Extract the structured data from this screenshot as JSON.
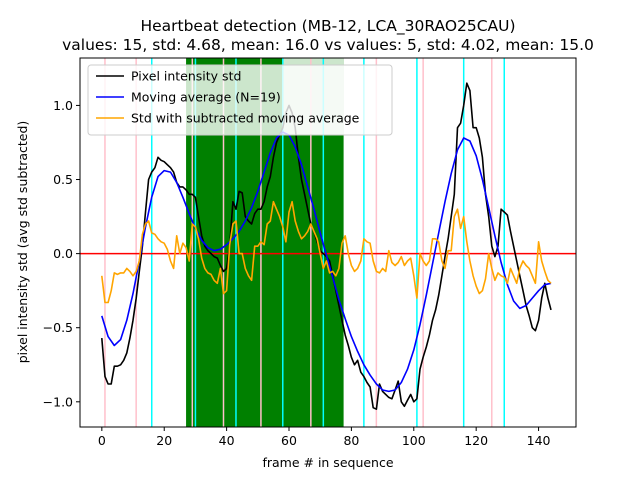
{
  "chart_data": {
    "type": "line",
    "title_line1": "Heartbeat detection (MB-12, LCA_30RAO25CAU)",
    "title_line2": "values: 15, std: 4.68, mean: 16.0 vs values: 5, std: 4.02, mean: 15.0",
    "xlabel": "frame # in sequence",
    "ylabel": "pixel intensity std (avg std subtracted)",
    "xlim": [
      -7,
      152
    ],
    "ylim": [
      -1.17,
      1.32
    ],
    "xticks": [
      0,
      20,
      40,
      60,
      80,
      100,
      120,
      140
    ],
    "yticks": [
      -1.0,
      -0.5,
      0.0,
      0.5,
      1.0
    ],
    "xtick_labels": [
      "0",
      "20",
      "40",
      "60",
      "80",
      "100",
      "120",
      "140"
    ],
    "ytick_labels": [
      "−1.0",
      "−0.5",
      "0.0",
      "0.5",
      "1.0"
    ],
    "grid": false,
    "legend_position": "top-left",
    "zero_line": {
      "y": 0,
      "color": "#ff0000"
    },
    "green_region": {
      "x0": 27,
      "x1": 77.5,
      "color": "#008000"
    },
    "green_light_region": {
      "x0": 58,
      "x1": 77.5,
      "color": "#cce6cc"
    },
    "pink_vlines": {
      "color": "#ffc0cb",
      "x": [
        1,
        11,
        29,
        39,
        51,
        67,
        88,
        103,
        125
      ]
    },
    "cyan_vlines": {
      "color": "#00ffff",
      "x": [
        16,
        30,
        43,
        58,
        71,
        84,
        101,
        116,
        129
      ]
    },
    "series": [
      {
        "name": "Pixel intensity std",
        "color": "#000000",
        "x": [
          0,
          1,
          2,
          3,
          4,
          5,
          6,
          7,
          8,
          9,
          10,
          11,
          12,
          13,
          14,
          15,
          16,
          17,
          18,
          19,
          20,
          21,
          22,
          23,
          24,
          25,
          26,
          27,
          28,
          29,
          30,
          31,
          32,
          33,
          34,
          35,
          36,
          37,
          38,
          39,
          40,
          41,
          42,
          43,
          44,
          45,
          46,
          47,
          48,
          49,
          50,
          51,
          52,
          53,
          54,
          55,
          56,
          57,
          58,
          59,
          60,
          61,
          62,
          63,
          64,
          65,
          66,
          67,
          68,
          69,
          70,
          71,
          72,
          73,
          74,
          75,
          76,
          77,
          78,
          79,
          80,
          81,
          82,
          83,
          84,
          85,
          86,
          87,
          88,
          89,
          90,
          91,
          92,
          93,
          94,
          95,
          96,
          97,
          98,
          99,
          100,
          101,
          102,
          103,
          104,
          105,
          106,
          107,
          108,
          109,
          110,
          111,
          112,
          113,
          114,
          115,
          116,
          117,
          118,
          119,
          120,
          121,
          122,
          123,
          124,
          125,
          126,
          127,
          128,
          129,
          130,
          131,
          132,
          133,
          134,
          135,
          136,
          137,
          138,
          139,
          140,
          141,
          142,
          143,
          144
        ],
        "y": [
          -0.57,
          -0.83,
          -0.88,
          -0.88,
          -0.76,
          -0.76,
          -0.75,
          -0.72,
          -0.67,
          -0.57,
          -0.45,
          -0.3,
          -0.12,
          0.05,
          0.28,
          0.5,
          0.55,
          0.58,
          0.65,
          0.63,
          0.62,
          0.6,
          0.58,
          0.55,
          0.48,
          0.45,
          0.45,
          0.43,
          0.4,
          0.4,
          0.38,
          0.25,
          0.12,
          0.05,
          0.02,
          0.0,
          -0.02,
          -0.03,
          -0.08,
          -0.12,
          -0.1,
          0.05,
          0.35,
          0.3,
          0.42,
          0.41,
          0.25,
          0.22,
          0.2,
          0.27,
          0.3,
          0.3,
          0.35,
          0.45,
          0.52,
          0.65,
          0.75,
          0.8,
          0.85,
          0.95,
          1.0,
          0.95,
          0.85,
          0.65,
          0.5,
          0.4,
          0.3,
          0.2,
          0.15,
          0.08,
          0.02,
          0.0,
          -0.02,
          -0.05,
          -0.15,
          -0.25,
          -0.35,
          -0.45,
          -0.55,
          -0.62,
          -0.7,
          -0.75,
          -0.72,
          -0.8,
          -0.83,
          -0.87,
          -0.9,
          -1.04,
          -1.05,
          -0.88,
          -0.93,
          -0.95,
          -0.97,
          -0.98,
          -0.92,
          -0.86,
          -1.0,
          -1.03,
          -0.99,
          -0.95,
          -1.0,
          -0.98,
          -0.78,
          -0.7,
          -0.63,
          -0.55,
          -0.45,
          -0.38,
          -0.28,
          -0.15,
          -0.02,
          0.1,
          0.25,
          0.4,
          0.85,
          0.88,
          1.0,
          1.15,
          1.1,
          0.85,
          0.85,
          0.78,
          0.65,
          0.4,
          0.25,
          0.05,
          -0.02,
          0.05,
          0.3,
          0.28,
          0.26,
          0.15,
          0.05,
          -0.05,
          -0.15,
          -0.25,
          -0.35,
          -0.42,
          -0.5,
          -0.52,
          -0.45,
          -0.3,
          -0.2,
          -0.3,
          -0.38
        ]
      },
      {
        "name": "Moving average (N=19)",
        "color": "#0000ff",
        "x": [
          0,
          2,
          4,
          6,
          8,
          10,
          12,
          14,
          16,
          18,
          20,
          22,
          24,
          26,
          28,
          30,
          32,
          34,
          36,
          38,
          40,
          42,
          44,
          46,
          48,
          50,
          52,
          54,
          56,
          58,
          60,
          62,
          64,
          66,
          68,
          70,
          72,
          74,
          76,
          78,
          80,
          82,
          84,
          86,
          88,
          90,
          92,
          94,
          96,
          98,
          100,
          102,
          104,
          106,
          108,
          110,
          112,
          114,
          116,
          118,
          120,
          122,
          124,
          126,
          128,
          130,
          132,
          134,
          136,
          138,
          140,
          142,
          144
        ],
        "y": [
          -0.42,
          -0.56,
          -0.62,
          -0.58,
          -0.45,
          -0.27,
          -0.05,
          0.18,
          0.38,
          0.52,
          0.56,
          0.55,
          0.48,
          0.38,
          0.27,
          0.17,
          0.09,
          0.04,
          0.02,
          0.03,
          0.06,
          0.1,
          0.15,
          0.22,
          0.31,
          0.42,
          0.55,
          0.68,
          0.78,
          0.82,
          0.8,
          0.72,
          0.6,
          0.45,
          0.3,
          0.14,
          -0.01,
          -0.16,
          -0.31,
          -0.44,
          -0.56,
          -0.66,
          -0.75,
          -0.82,
          -0.88,
          -0.92,
          -0.93,
          -0.92,
          -0.87,
          -0.78,
          -0.65,
          -0.48,
          -0.28,
          -0.07,
          0.14,
          0.35,
          0.54,
          0.7,
          0.78,
          0.76,
          0.66,
          0.5,
          0.31,
          0.12,
          -0.06,
          -0.21,
          -0.32,
          -0.37,
          -0.35,
          -0.3,
          -0.25,
          -0.21,
          -0.2
        ]
      },
      {
        "name": "Std with subtracted moving average",
        "color": "#ffa500",
        "x": [
          0,
          1,
          2,
          3,
          4,
          5,
          6,
          7,
          8,
          9,
          10,
          11,
          12,
          13,
          14,
          15,
          16,
          17,
          18,
          19,
          20,
          21,
          22,
          23,
          24,
          25,
          26,
          27,
          28,
          29,
          30,
          31,
          32,
          33,
          34,
          35,
          36,
          37,
          38,
          39,
          40,
          41,
          42,
          43,
          44,
          45,
          46,
          47,
          48,
          49,
          50,
          51,
          52,
          53,
          54,
          55,
          56,
          57,
          58,
          59,
          60,
          61,
          62,
          63,
          64,
          65,
          66,
          67,
          68,
          69,
          70,
          71,
          72,
          73,
          74,
          75,
          76,
          77,
          78,
          79,
          80,
          81,
          82,
          83,
          84,
          85,
          86,
          87,
          88,
          89,
          90,
          91,
          92,
          93,
          94,
          95,
          96,
          97,
          98,
          99,
          100,
          101,
          102,
          103,
          104,
          105,
          106,
          107,
          108,
          109,
          110,
          111,
          112,
          113,
          114,
          115,
          116,
          117,
          118,
          119,
          120,
          121,
          122,
          123,
          124,
          125,
          126,
          127,
          128,
          129,
          130,
          131,
          132,
          133,
          134,
          135,
          136,
          137,
          138,
          139,
          140,
          141,
          142,
          143,
          144
        ],
        "y": [
          -0.15,
          -0.33,
          -0.33,
          -0.25,
          -0.13,
          -0.14,
          -0.13,
          -0.13,
          -0.1,
          -0.12,
          -0.15,
          -0.12,
          -0.05,
          0.13,
          0.2,
          0.22,
          0.14,
          0.13,
          0.1,
          0.08,
          0.07,
          0.03,
          -0.05,
          -0.1,
          0.12,
          0.0,
          0.07,
          0.04,
          -0.05,
          0.2,
          0.18,
          0.1,
          -0.03,
          -0.1,
          -0.13,
          -0.14,
          -0.18,
          -0.2,
          -0.1,
          -0.27,
          -0.25,
          0.06,
          0.2,
          0.22,
          0.0,
          0.0,
          -0.1,
          -0.15,
          -0.18,
          0.05,
          0.05,
          0.08,
          0.06,
          0.2,
          0.22,
          0.35,
          0.3,
          0.25,
          0.18,
          0.08,
          0.28,
          0.35,
          0.22,
          0.15,
          0.1,
          0.12,
          0.15,
          0.2,
          0.15,
          0.1,
          0.0,
          -0.1,
          -0.05,
          -0.13,
          -0.12,
          -0.15,
          -0.1,
          0.07,
          0.12,
          0.0,
          -0.08,
          -0.12,
          -0.1,
          -0.05,
          0.1,
          0.08,
          0.07,
          -0.05,
          -0.12,
          -0.13,
          -0.1,
          -0.12,
          0.02,
          -0.06,
          -0.08,
          -0.06,
          -0.02,
          -0.08,
          -0.05,
          -0.03,
          -0.15,
          -0.3,
          0.0,
          -0.05,
          -0.08,
          -0.05,
          0.1,
          0.1,
          0.08,
          -0.05,
          -0.1,
          0.02,
          0.02,
          0.25,
          0.3,
          0.17,
          0.25,
          0.08,
          -0.05,
          -0.15,
          -0.22,
          -0.27,
          -0.25,
          -0.17,
          0.0,
          -0.1,
          -0.18,
          -0.13,
          -0.15,
          -0.16,
          -0.2,
          -0.1,
          -0.15,
          -0.2,
          -0.1,
          -0.05,
          -0.08,
          -0.1,
          -0.15,
          -0.2,
          0.08,
          -0.05,
          -0.12,
          -0.18,
          -0.2
        ]
      }
    ]
  }
}
